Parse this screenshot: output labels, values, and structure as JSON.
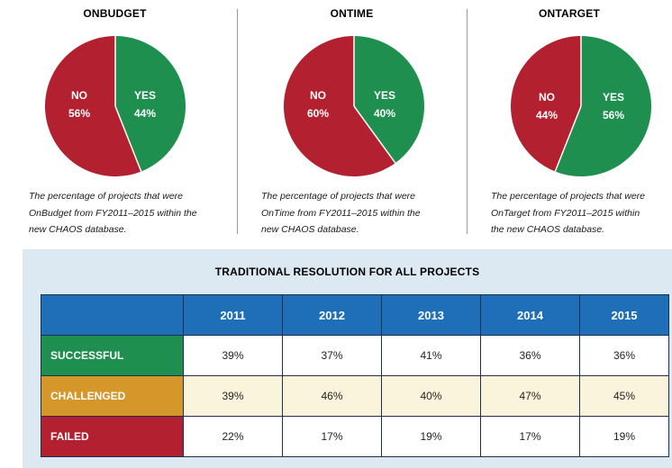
{
  "colors": {
    "yes": "#1e8f4e",
    "no": "#b32030",
    "header": "#1f6fb8",
    "challenged": "#d5962a"
  },
  "chart_data": [
    {
      "type": "pie",
      "title": "ONBUDGET",
      "slices": [
        {
          "label": "YES",
          "value": 44,
          "display": "44%"
        },
        {
          "label": "NO",
          "value": 56,
          "display": "56%"
        }
      ],
      "caption": [
        "The percentage of projects that were",
        "OnBudget from FY2011–2015 within the",
        "new CHAOS database."
      ]
    },
    {
      "type": "pie",
      "title": "ONTIME",
      "slices": [
        {
          "label": "YES",
          "value": 40,
          "display": "40%"
        },
        {
          "label": "NO",
          "value": 60,
          "display": "60%"
        }
      ],
      "caption": [
        "The percentage of projects that were",
        "OnTime from FY2011–2015 within the",
        "new CHAOS database."
      ]
    },
    {
      "type": "pie",
      "title": "ONTARGET",
      "slices": [
        {
          "label": "YES",
          "value": 56,
          "display": "56%"
        },
        {
          "label": "NO",
          "value": 44,
          "display": "44%"
        }
      ],
      "caption": [
        "The percentage of projects that were",
        "OnTarget from FY2011–2015 within",
        "the new CHAOS database."
      ]
    },
    {
      "type": "table",
      "title": "TRADITIONAL RESOLUTION FOR ALL PROJECTS",
      "columns": [
        "2011",
        "2012",
        "2013",
        "2014",
        "2015"
      ],
      "rows": [
        {
          "label": "SUCCESSFUL",
          "values": [
            "39%",
            "37%",
            "41%",
            "36%",
            "36%"
          ]
        },
        {
          "label": "CHALLENGED",
          "values": [
            "39%",
            "46%",
            "40%",
            "47%",
            "45%"
          ]
        },
        {
          "label": "FAILED",
          "values": [
            "22%",
            "17%",
            "19%",
            "17%",
            "19%"
          ]
        }
      ]
    }
  ]
}
